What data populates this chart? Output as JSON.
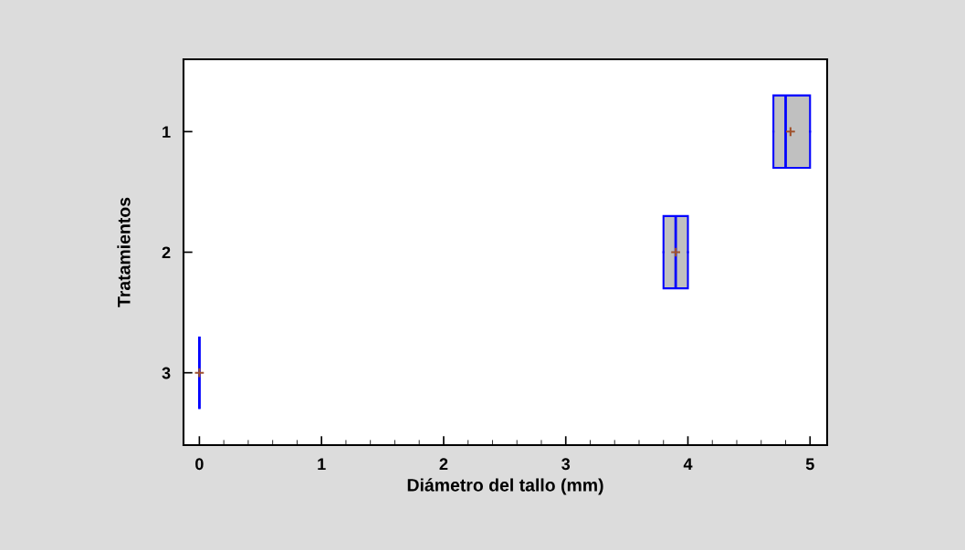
{
  "chart_data": {
    "type": "box",
    "orientation": "horizontal",
    "xlabel": "Diámetro del tallo (mm)",
    "ylabel": "Tratamientos",
    "categories": [
      "1",
      "2",
      "3"
    ],
    "boxes": [
      {
        "low": 4.7,
        "q1": 4.7,
        "median": 4.8,
        "q3": 5.0,
        "high": 5.0,
        "mean": 4.84
      },
      {
        "low": 3.8,
        "q1": 3.8,
        "median": 3.9,
        "q3": 4.0,
        "high": 4.0,
        "mean": 3.9
      },
      {
        "low": 0,
        "q1": 0,
        "median": 0,
        "q3": 0,
        "high": 0,
        "mean": 0
      }
    ],
    "color": "#0000ff",
    "xlim": [
      -0.13,
      5.14
    ],
    "xticks": [
      0,
      {
        "value": 0.2,
        "label": null
      },
      {
        "value": 0.4,
        "label": null
      },
      {
        "value": 0.6,
        "label": null
      },
      {
        "value": 0.8,
        "label": null
      },
      1,
      {
        "value": 1.2,
        "label": null
      },
      {
        "value": 1.4,
        "label": null
      },
      {
        "value": 1.6,
        "label": null
      },
      {
        "value": 1.8,
        "label": null
      },
      2,
      {
        "value": 2.2,
        "label": null
      },
      {
        "value": 2.4,
        "label": null
      },
      {
        "value": 2.6,
        "label": null
      },
      {
        "value": 2.8,
        "label": null
      },
      3,
      {
        "value": 3.2,
        "label": null
      },
      {
        "value": 3.4,
        "label": null
      },
      {
        "value": 3.6,
        "label": null
      },
      {
        "value": 3.8,
        "label": null
      },
      4,
      {
        "value": 4.2,
        "label": null
      },
      {
        "value": 4.4,
        "label": null
      },
      {
        "value": 4.6,
        "label": null
      },
      {
        "value": 4.8,
        "label": null
      },
      5
    ],
    "grid": false,
    "legend": false
  }
}
